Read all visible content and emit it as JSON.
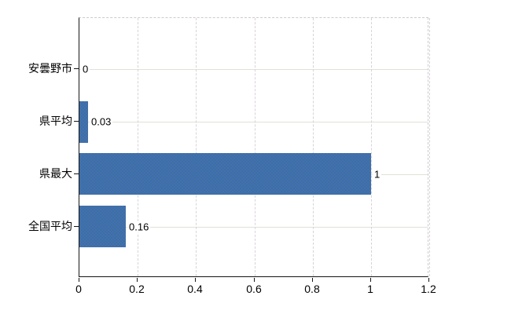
{
  "chart_data": {
    "type": "bar",
    "orientation": "horizontal",
    "title": "",
    "xlabel": "",
    "ylabel": "",
    "categories": [
      "安曇野市",
      "県平均",
      "県最大",
      "全国平均"
    ],
    "values": [
      0,
      0.03,
      1,
      0.16
    ],
    "value_labels": [
      "0",
      "0.03",
      "1",
      "0.16"
    ],
    "xlim": [
      0,
      1.2
    ],
    "x_ticks": [
      0,
      0.2,
      0.4,
      0.6,
      0.8,
      1,
      1.2
    ],
    "x_tick_labels": [
      "0",
      "0.2",
      "0.4",
      "0.6",
      "0.8",
      "1",
      "1.2"
    ],
    "grid": true,
    "legend": false,
    "colors": {
      "bar": "#3f6fae",
      "axis": "#161616",
      "h_gridline": "#dde3d6",
      "v_gridline": "#d9d2d9",
      "plot_border_dashed": "#cfc9cf",
      "text": "#000000",
      "background": "#ffffff"
    }
  }
}
